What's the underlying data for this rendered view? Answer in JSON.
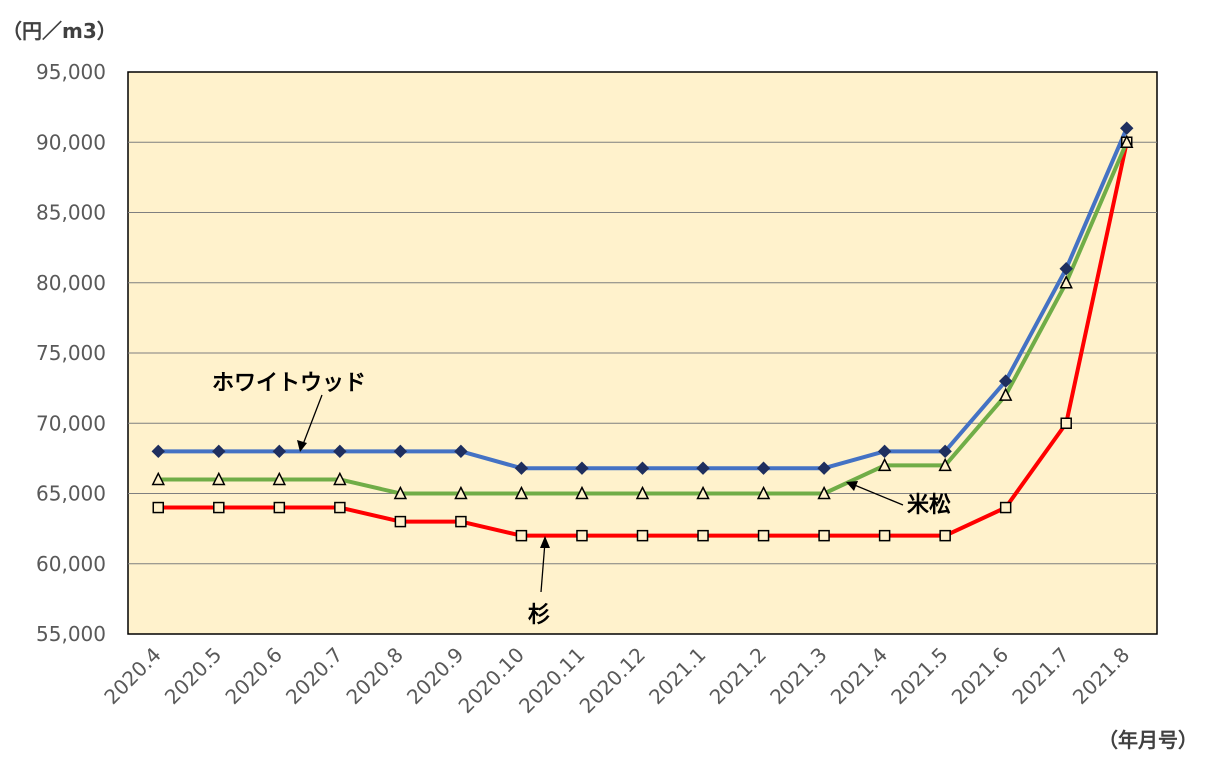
{
  "chart_data": {
    "type": "line",
    "y_unit": "（円／m3）",
    "x_unit": "（年月号）",
    "ylim": [
      55000,
      95000
    ],
    "y_ticks": [
      "95,000",
      "90,000",
      "85,000",
      "80,000",
      "75,000",
      "70,000",
      "65,000",
      "60,000",
      "55,000"
    ],
    "y_tick_values": [
      95000,
      90000,
      85000,
      80000,
      75000,
      70000,
      65000,
      60000,
      55000
    ],
    "categories": [
      "2020.4",
      "2020.5",
      "2020.6",
      "2020.7",
      "2020.8",
      "2020.9",
      "2020.10",
      "2020.11",
      "2020.12",
      "2021.1",
      "2021.2",
      "2021.3",
      "2021.4",
      "2021.5",
      "2021.6",
      "2021.7",
      "2021.8"
    ],
    "grid": true,
    "plot_background": "#FFF2CC",
    "series": [
      {
        "name": "ホワイトウッド",
        "color": "#4472C4",
        "marker": "diamond",
        "values": [
          68000,
          68000,
          68000,
          68000,
          68000,
          68000,
          66800,
          66800,
          66800,
          66800,
          66800,
          66800,
          68000,
          68000,
          73000,
          81000,
          91000
        ]
      },
      {
        "name": "米松",
        "color": "#70AD47",
        "marker": "triangle",
        "values": [
          66000,
          66000,
          66000,
          66000,
          65000,
          65000,
          65000,
          65000,
          65000,
          65000,
          65000,
          65000,
          67000,
          67000,
          72000,
          80000,
          90000
        ]
      },
      {
        "name": "杉",
        "color": "#FF0000",
        "marker": "square",
        "values": [
          64000,
          64000,
          64000,
          64000,
          63000,
          63000,
          62000,
          62000,
          62000,
          62000,
          62000,
          62000,
          62000,
          62000,
          64000,
          70000,
          90000
        ]
      }
    ]
  }
}
